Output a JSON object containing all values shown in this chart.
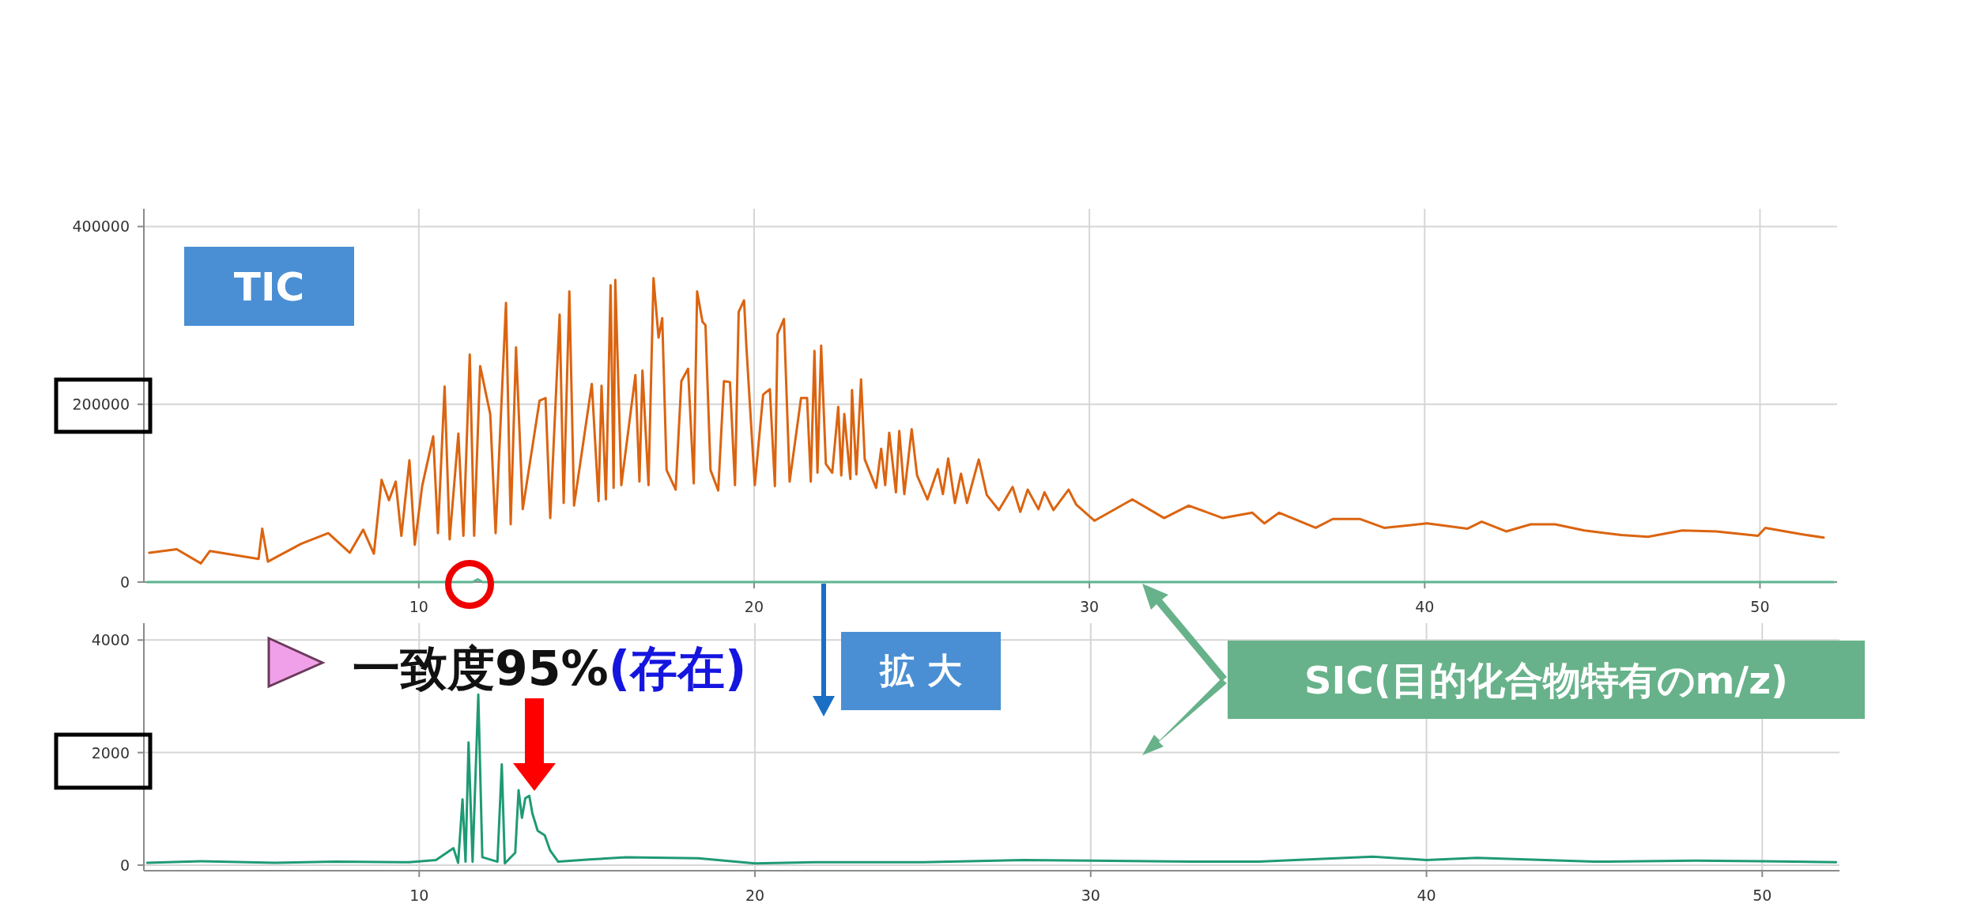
{
  "chart_data": [
    {
      "type": "line",
      "xlim": [
        1.8,
        52.3
      ],
      "xticks": [
        10,
        20,
        30,
        40,
        50
      ],
      "ylim": [
        0,
        420000
      ],
      "yticks": [
        0,
        200000,
        400000
      ],
      "grid": true,
      "series": [
        {
          "name": "TIC",
          "color": "#db6410",
          "x": [
            1.96,
            2.78,
            3.5,
            3.77,
            5.22,
            5.33,
            5.5,
            6.49,
            7.3,
            7.94,
            8.34,
            8.66,
            8.89,
            9.11,
            9.31,
            9.48,
            9.72,
            9.88,
            10.1,
            10.43,
            10.57,
            10.77,
            10.92,
            11.18,
            11.33,
            11.52,
            11.65,
            11.83,
            12.13,
            12.29,
            12.6,
            12.74,
            12.9,
            13.1,
            13.6,
            13.78,
            13.92,
            14.2,
            14.32,
            14.49,
            14.63,
            15.16,
            15.36,
            15.45,
            15.58,
            15.72,
            15.81,
            15.86,
            16.04,
            16.46,
            16.58,
            16.67,
            16.85,
            17.0,
            17.15,
            17.26,
            17.39,
            17.66,
            17.83,
            18.03,
            18.2,
            18.3,
            18.46,
            18.55,
            18.7,
            18.93,
            19.1,
            19.28,
            19.43,
            19.54,
            19.7,
            19.77,
            20.02,
            20.27,
            20.47,
            20.62,
            20.7,
            20.89,
            21.06,
            21.4,
            21.58,
            21.69,
            21.8,
            21.89,
            22.0,
            22.14,
            22.33,
            22.51,
            22.6,
            22.69,
            22.87,
            22.92,
            23.05,
            23.19,
            23.3,
            23.64,
            23.79,
            23.91,
            24.03,
            24.23,
            24.33,
            24.48,
            24.7,
            24.86,
            25.17,
            25.48,
            25.63,
            25.79,
            25.99,
            26.17,
            26.35,
            26.7,
            26.94,
            27.3,
            27.71,
            27.94,
            28.16,
            28.48,
            28.66,
            28.93,
            29.38,
            29.61,
            30.15,
            31.28,
            32.23,
            32.96,
            33.98,
            34.86,
            35.22,
            35.66,
            36.75,
            37.26,
            38.06,
            38.79,
            40.07,
            41.27,
            41.7,
            42.43,
            43.16,
            43.89,
            44.76,
            45.86,
            46.66,
            47.68,
            48.7,
            49.94,
            50.16,
            51.2,
            51.9
          ],
          "values": [
            33000,
            37000,
            21000,
            35000,
            26000,
            60000,
            23000,
            43000,
            55000,
            33000,
            59000,
            32000,
            115000,
            92000,
            113000,
            52000,
            137000,
            42000,
            108000,
            164000,
            55000,
            220000,
            48000,
            167000,
            52000,
            256000,
            52000,
            243000,
            189000,
            55000,
            314000,
            65000,
            264000,
            82000,
            204000,
            207000,
            72000,
            301000,
            89000,
            327000,
            86000,
            223000,
            91000,
            221000,
            93000,
            334000,
            106000,
            340000,
            109000,
            233000,
            113000,
            238000,
            109000,
            342000,
            275000,
            297000,
            126000,
            104000,
            226000,
            240000,
            111000,
            327000,
            293000,
            289000,
            126000,
            103000,
            226000,
            225000,
            109000,
            304000,
            317000,
            265000,
            109000,
            211000,
            217000,
            108000,
            279000,
            296000,
            113000,
            207000,
            207000,
            113000,
            260000,
            123000,
            266000,
            133000,
            123000,
            197000,
            120000,
            189000,
            116000,
            216000,
            121000,
            228000,
            138000,
            106000,
            150000,
            109000,
            168000,
            101000,
            170000,
            99000,
            172000,
            120000,
            93000,
            127000,
            99000,
            139000,
            89000,
            122000,
            89000,
            138000,
            98000,
            81000,
            107000,
            79000,
            104000,
            82000,
            101000,
            81000,
            104000,
            87000,
            69000,
            93000,
            72000,
            86000,
            72000,
            78000,
            66000,
            78000,
            61000,
            71000,
            71000,
            61000,
            66000,
            60000,
            68000,
            57000,
            65000,
            65000,
            58000,
            53000,
            51000,
            58000,
            57000,
            52000,
            61000,
            54000,
            50000
          ]
        },
        {
          "color": "#5db491",
          "x": [
            1.9,
            11.6,
            11.76,
            11.9,
            52.2
          ],
          "values": [
            0,
            0,
            3000,
            0,
            0
          ]
        }
      ]
    },
    {
      "type": "line",
      "xlim": [
        1.8,
        52.3
      ],
      "xticks": [
        10,
        20,
        30,
        40,
        50
      ],
      "ylim": [
        -100,
        4300
      ],
      "yticks": [
        0,
        2000,
        4000
      ],
      "grid": true,
      "series": [
        {
          "name": "SIC(目的化合物特有のm/z)",
          "color": "#1f9a74",
          "x": [
            1.9,
            3.5,
            5.7,
            7.5,
            9.7,
            10.5,
            11.02,
            11.16,
            11.29,
            11.38,
            11.47,
            11.59,
            11.76,
            11.88,
            12.33,
            12.46,
            12.55,
            12.86,
            12.96,
            13.06,
            13.16,
            13.28,
            13.37,
            13.53,
            13.74,
            13.9,
            14.14,
            15.08,
            16.16,
            18.31,
            20.0,
            21.8,
            25,
            28,
            30,
            33,
            35,
            38.4,
            40,
            41.5,
            45,
            48,
            50,
            52.2
          ],
          "values": [
            40,
            70,
            40,
            60,
            50,
            90,
            300,
            40,
            1170,
            60,
            2180,
            60,
            3030,
            140,
            60,
            1790,
            30,
            220,
            1330,
            840,
            1190,
            1230,
            920,
            610,
            530,
            260,
            60,
            100,
            140,
            120,
            30,
            50,
            50,
            90,
            80,
            60,
            60,
            150,
            90,
            130,
            60,
            80,
            70,
            50
          ]
        }
      ],
      "annotations": [
        "一致度95%",
        "(存在)",
        "拡 大"
      ]
    }
  ]
}
